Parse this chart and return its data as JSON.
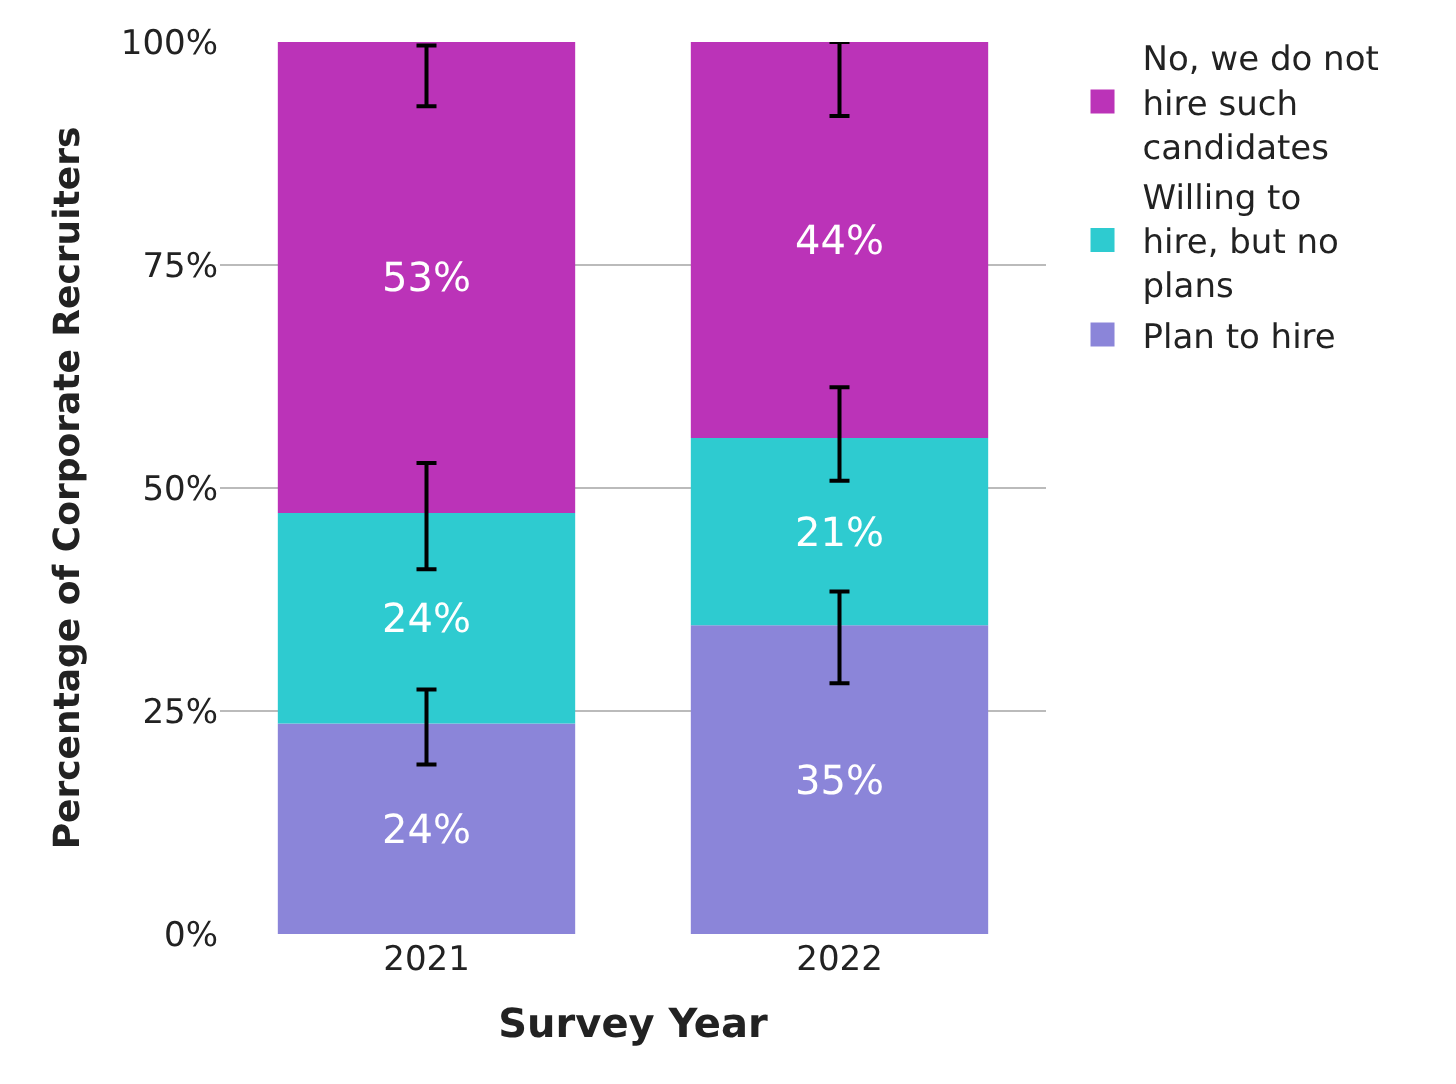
{
  "chart_data": {
    "type": "bar",
    "stacked": true,
    "xlabel": "Survey Year",
    "ylabel": "Percentage of Corporate Recruiters",
    "categories": [
      "2021",
      "2022"
    ],
    "series": [
      {
        "name": "Plan to hire",
        "color": "#8b85d9",
        "values": [
          23.6,
          34.6
        ],
        "value_labels": [
          "24%",
          "35%"
        ],
        "errors": [
          [
            19,
            27.4
          ],
          [
            28.1,
            38.4
          ]
        ]
      },
      {
        "name": "Willing to hire, but no plans",
        "color": "#2ecbd0",
        "values": [
          23.6,
          21
        ],
        "value_labels": [
          "24%",
          "21%"
        ],
        "errors": [
          [
            40.9,
            52.8
          ],
          [
            50.8,
            61.3
          ]
        ]
      },
      {
        "name": "No, we do not hire such candidates",
        "color": "#bb33b8",
        "values": [
          52.8,
          44.4
        ],
        "value_labels": [
          "53%",
          "44%"
        ],
        "errors": [
          [
            92.8,
            99.6
          ],
          [
            91.7,
            100
          ]
        ]
      }
    ],
    "ylim": [
      0,
      100
    ],
    "yticks": [
      {
        "value": 0,
        "label": "0%"
      },
      {
        "value": 25,
        "label": "25%"
      },
      {
        "value": 50,
        "label": "50%"
      },
      {
        "value": 75,
        "label": "75%"
      },
      {
        "value": 100,
        "label": "100%"
      }
    ],
    "grid": "y",
    "legend": "right"
  }
}
